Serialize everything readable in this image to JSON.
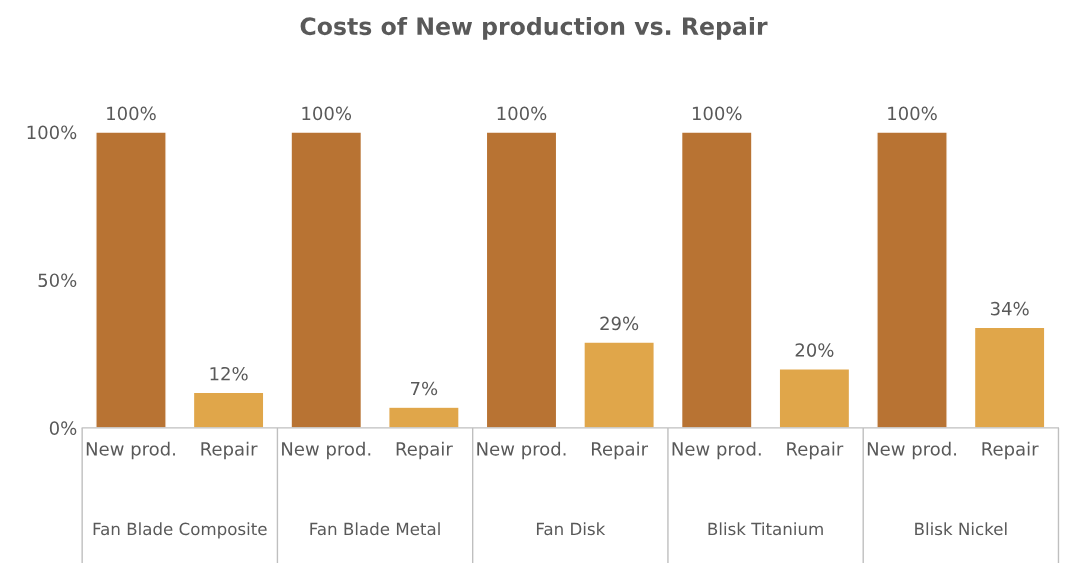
{
  "chart_data": {
    "type": "bar",
    "title": "Costs of New production vs. Repair",
    "categories": [
      "New prod.",
      "Repair",
      "New prod.",
      "Repair",
      "New prod.",
      "Repair",
      "New prod.",
      "Repair",
      "New prod.",
      "Repair"
    ],
    "values": [
      100,
      12,
      100,
      7,
      100,
      29,
      100,
      20,
      100,
      34
    ],
    "colors": [
      "#b87333",
      "#e0a64a",
      "#b87333",
      "#e0a64a",
      "#b87333",
      "#e0a64a",
      "#b87333",
      "#e0a64a",
      "#b87333",
      "#e0a64a"
    ],
    "value_labels": [
      "100%",
      "12%",
      "100%",
      "7%",
      "100%",
      "29%",
      "100%",
      "20%",
      "100%",
      "34%"
    ],
    "annotations": [
      "Fan Blade Composite",
      "Fan Blade Metal",
      "Fan Disk",
      "Blisk Titanium",
      "Blisk Nickel"
    ],
    "ylim": [
      0,
      100
    ],
    "yticks": [
      {
        "value": 0,
        "label": "0%"
      },
      {
        "value": 50,
        "label": "50%"
      },
      {
        "value": 100,
        "label": "100%"
      }
    ],
    "grid": false,
    "legend": false
  }
}
